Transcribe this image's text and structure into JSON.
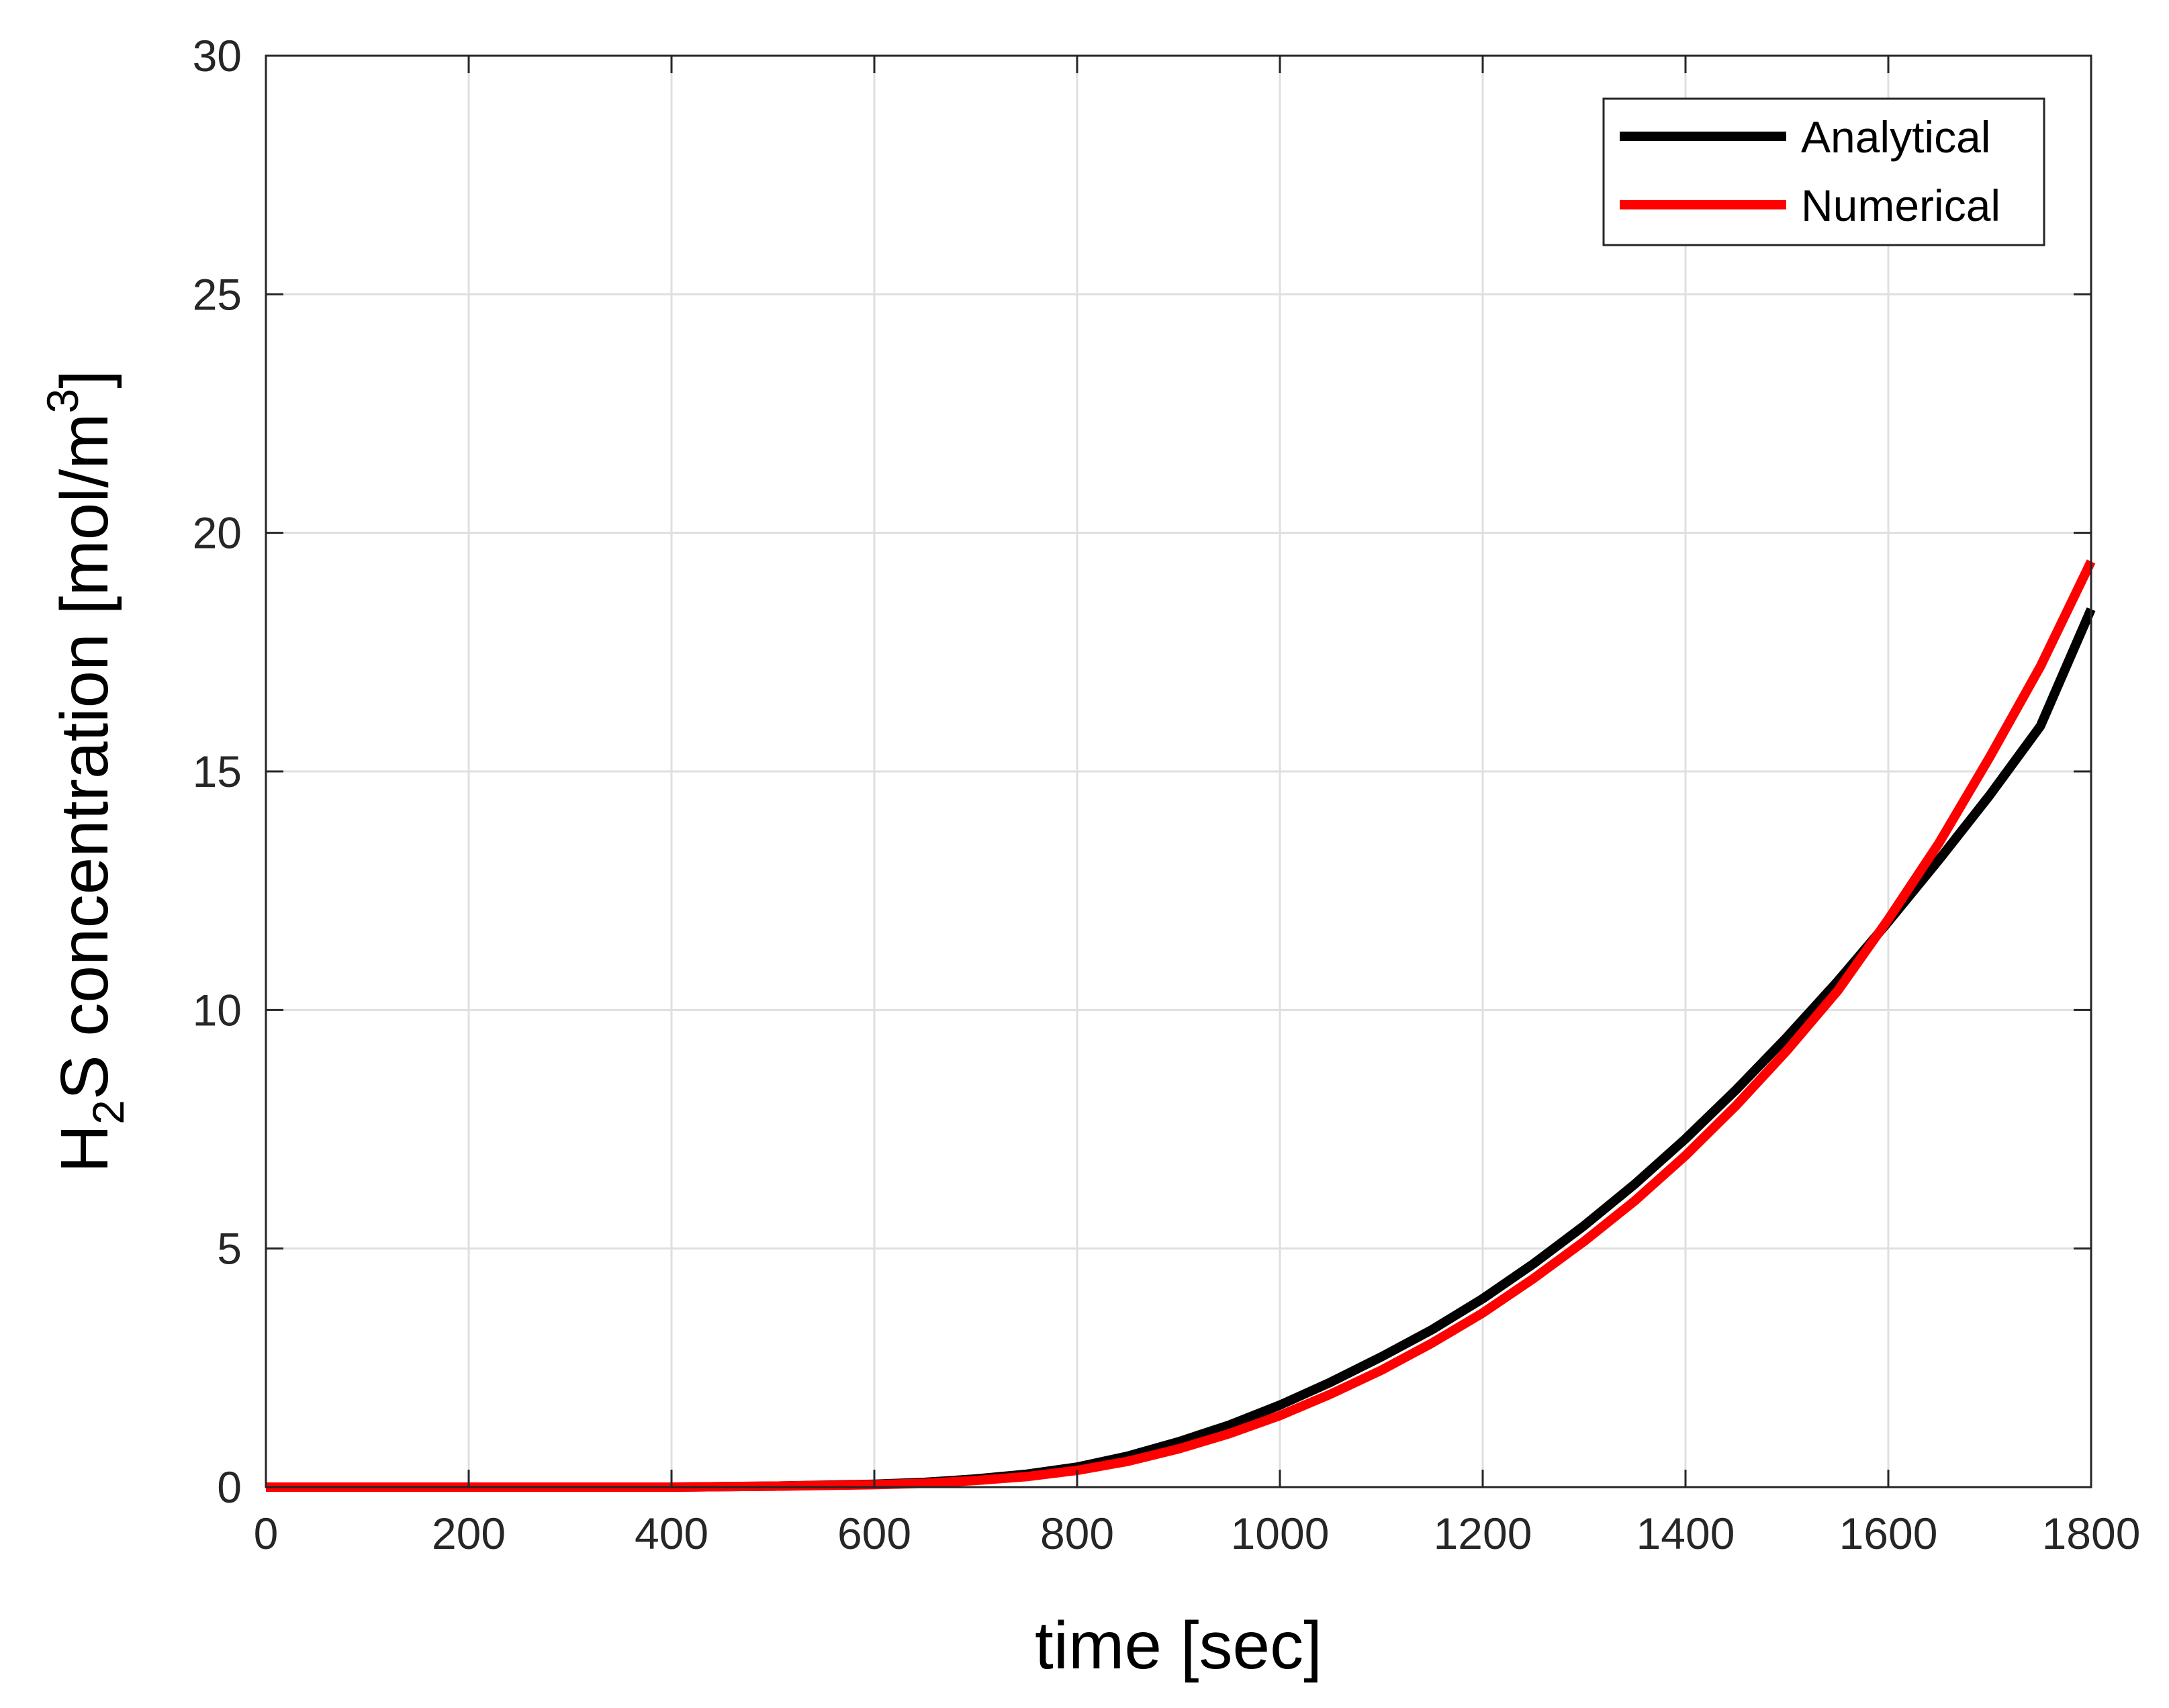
{
  "chart_data": {
    "type": "line",
    "title": "",
    "xlabel": "time [sec]",
    "ylabel": {
      "prefix": "H",
      "sub": "2",
      "middle": "S concentration [mol/m",
      "sup": "3",
      "suffix": "]"
    },
    "xlim": [
      0,
      1800
    ],
    "ylim": [
      0,
      30
    ],
    "xticks": [
      "0",
      "200",
      "400",
      "600",
      "800",
      "1000",
      "1200",
      "1400",
      "1600",
      "1800"
    ],
    "yticks": [
      "0",
      "5",
      "10",
      "15",
      "20",
      "25",
      "30"
    ],
    "grid": true,
    "legend_placement": "top-right",
    "series": [
      {
        "name": "Analytical",
        "color": "#000000",
        "x": [
          0,
          100,
          200,
          300,
          400,
          500,
          600,
          650,
          700,
          750,
          800,
          850,
          900,
          950,
          1000,
          1050,
          1100,
          1150,
          1200,
          1250,
          1300,
          1350,
          1400,
          1450,
          1500,
          1550,
          1600,
          1650,
          1700,
          1750,
          1800
        ],
        "y": [
          0,
          0,
          0,
          0,
          0,
          0.02,
          0.06,
          0.1,
          0.17,
          0.27,
          0.42,
          0.65,
          0.95,
          1.3,
          1.72,
          2.2,
          2.73,
          3.3,
          3.95,
          4.68,
          5.48,
          6.35,
          7.3,
          8.33,
          9.43,
          10.6,
          11.85,
          13.15,
          14.5,
          15.95,
          18.4
        ]
      },
      {
        "name": "Numerical",
        "color": "#ff0000",
        "x": [
          0,
          100,
          200,
          300,
          400,
          500,
          600,
          650,
          700,
          750,
          800,
          850,
          900,
          950,
          1000,
          1050,
          1100,
          1150,
          1200,
          1250,
          1300,
          1350,
          1400,
          1450,
          1500,
          1550,
          1600,
          1650,
          1700,
          1750,
          1800
        ],
        "y": [
          0,
          0,
          0,
          0,
          0,
          0.02,
          0.05,
          0.08,
          0.14,
          0.22,
          0.35,
          0.54,
          0.8,
          1.12,
          1.5,
          1.95,
          2.45,
          3.02,
          3.65,
          4.37,
          5.15,
          6.0,
          6.95,
          8.0,
          9.15,
          10.4,
          11.9,
          13.5,
          15.3,
          17.2,
          19.4
        ]
      }
    ]
  }
}
